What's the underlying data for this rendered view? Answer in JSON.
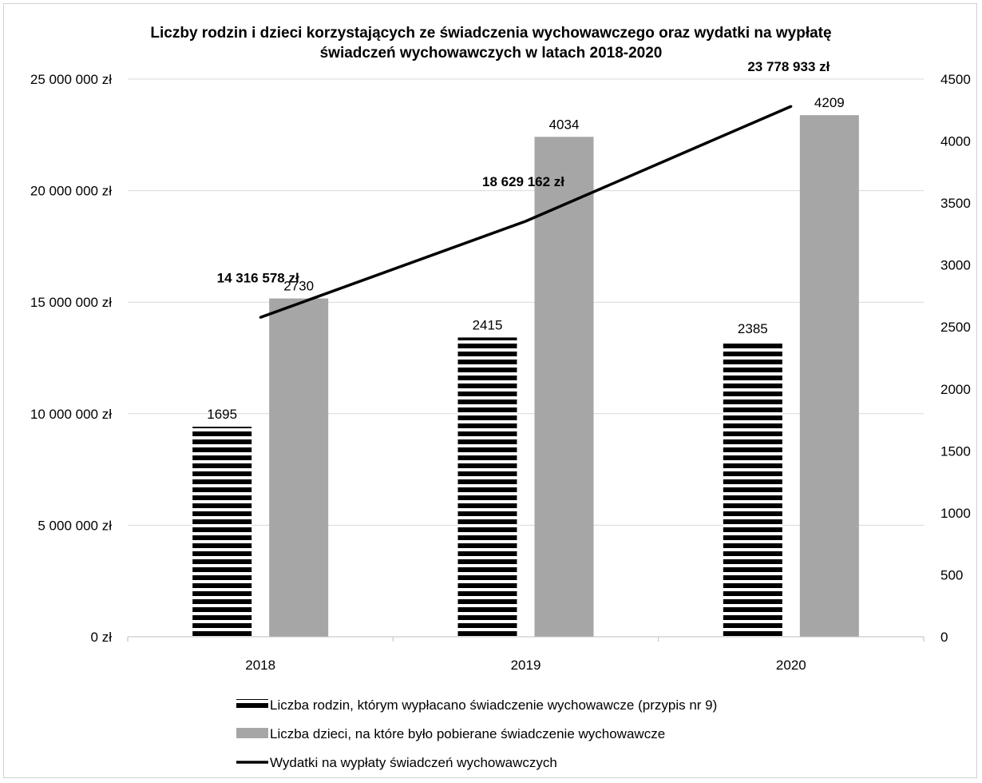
{
  "chart_data": {
    "type": "bar",
    "title": "Liczby rodzin i dzieci korzystających ze świadczenia wychowawczego oraz wydatki na wypłatę świadczeń wychowawczych w latach 2018-2020",
    "title_lines": [
      "Liczby rodzin i dzieci korzystających ze świadczenia wychowawczego oraz wydatki na wypłatę",
      "świadczeń wychowawczych w latach 2018-2020"
    ],
    "categories": [
      "2018",
      "2019",
      "2020"
    ],
    "series": [
      {
        "name": "Liczba rodzin, którym wypłacano świadczenie wychowawcze (przypis nr 9)",
        "type": "bar",
        "axis": "right",
        "pattern": "horizontal-stripes",
        "color": "#000000",
        "values": [
          1695,
          2415,
          2385
        ],
        "labels": [
          "1695",
          "2415",
          "2385"
        ]
      },
      {
        "name": "Liczba dzieci, na które było pobierane  świadczenie wychowawcze",
        "type": "bar",
        "axis": "right",
        "color": "#a6a6a6",
        "values": [
          2730,
          4034,
          4209
        ],
        "labels": [
          "2730",
          "4034",
          "4209"
        ]
      },
      {
        "name": "Wydatki na wypłaty świadczeń wychowawczych",
        "type": "line",
        "axis": "left",
        "color": "#000000",
        "values": [
          14316578,
          18629162,
          23778933
        ],
        "labels": [
          "14 316 578 zł",
          "18 629 162 zł",
          "23 778 933 zł"
        ]
      }
    ],
    "y_left": {
      "lim": [
        0,
        25000000
      ],
      "ticks": [
        0,
        5000000,
        10000000,
        15000000,
        20000000,
        25000000
      ],
      "tick_labels": [
        "0 zł",
        "5 000 000 zł",
        "10 000 000 zł",
        "15 000 000 zł",
        "20 000 000 zł",
        "25 000 000 zł"
      ]
    },
    "y_right": {
      "lim": [
        0,
        4500
      ],
      "ticks": [
        0,
        500,
        1000,
        1500,
        2000,
        2500,
        3000,
        3500,
        4000,
        4500
      ],
      "tick_labels": [
        "0",
        "500",
        "1000",
        "1500",
        "2000",
        "2500",
        "3000",
        "3500",
        "4000",
        "4500"
      ]
    },
    "grid": true,
    "legend_position": "bottom"
  }
}
